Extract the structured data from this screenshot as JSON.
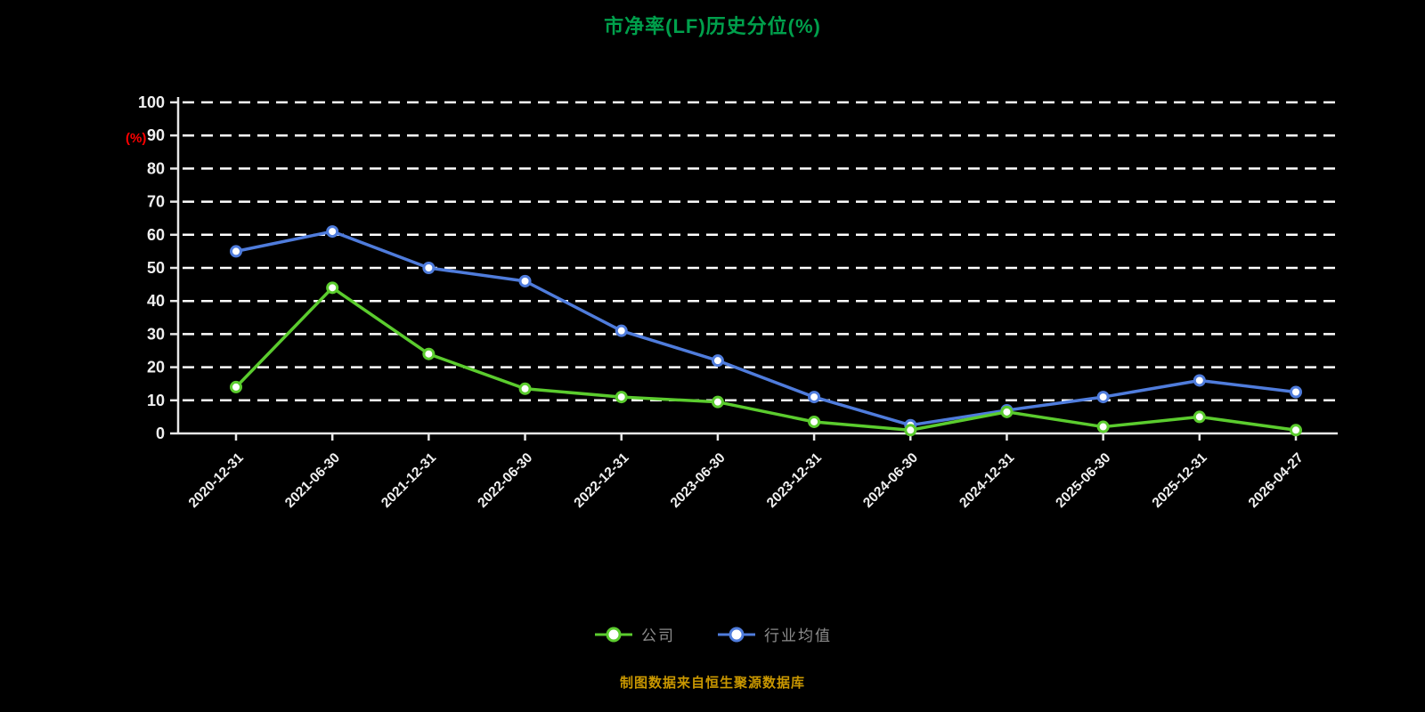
{
  "page": {
    "background_color": "#000000"
  },
  "chart": {
    "title": "市净率(LF)历史分位(%)",
    "title_color": "#00A04C",
    "y_axis_unit": "(%)",
    "y_axis_unit_color": "#FF0000",
    "source_note": "制图数据来自恒生聚源数据库",
    "source_note_color": "#C99700"
  },
  "chart_data": {
    "type": "line",
    "title": "市净率(LF)历史分位(%)",
    "xlabel": "",
    "ylabel": "(%)",
    "ylim": [
      0,
      100
    ],
    "yticks": [
      0,
      10,
      20,
      30,
      40,
      50,
      60,
      70,
      80,
      90,
      100
    ],
    "grid": "horizontal dashed white lines",
    "legend_position": "bottom",
    "categories": [
      "2020-12-31",
      "2021-06-30",
      "2021-12-31",
      "2022-06-30",
      "2022-12-31",
      "2023-06-30",
      "2023-12-31",
      "2024-06-30",
      "2024-12-31",
      "2025-06-30",
      "2025-12-31",
      "2026-04-27"
    ],
    "series": [
      {
        "name": "公司",
        "color": "#5BCC2E",
        "values": [
          14,
          44,
          24,
          13.5,
          11,
          9.5,
          3.5,
          1,
          6.5,
          2,
          5,
          1
        ]
      },
      {
        "name": "行业均值",
        "color": "#4F7CDC",
        "values": [
          55,
          61,
          50,
          46,
          31,
          22,
          11,
          2.5,
          7,
          11,
          16,
          12.5
        ]
      }
    ]
  }
}
